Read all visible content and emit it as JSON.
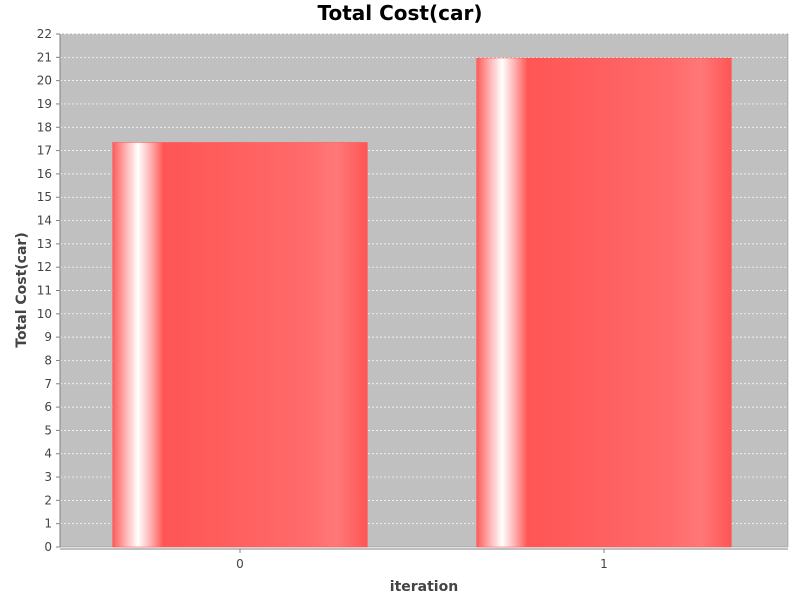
{
  "chart_data": {
    "type": "bar",
    "title": "Total Cost(car)",
    "xlabel": "iteration",
    "ylabel": "Total Cost(car)",
    "categories": [
      "0",
      "1"
    ],
    "values": [
      17.35,
      20.97
    ],
    "ylim": [
      0,
      22
    ],
    "yticks": [
      0,
      1,
      2,
      3,
      4,
      5,
      6,
      7,
      8,
      9,
      10,
      11,
      12,
      13,
      14,
      15,
      16,
      17,
      18,
      19,
      20,
      21,
      22
    ],
    "grid": true,
    "legend": "none",
    "colors": {
      "plot_background": "#c0c0c0",
      "bar": "#ff5555",
      "bar_highlight": "#ffffff",
      "gridline": "#ffffff"
    }
  }
}
